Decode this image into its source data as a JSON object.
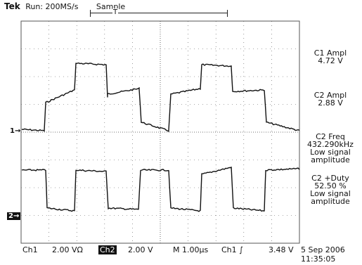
{
  "header": {
    "brand": "Tek",
    "run_state": "Run: 200MS/s",
    "acq_mode": "Sample",
    "trigger_pos_glyph": "T"
  },
  "markers": {
    "ch1": "1→",
    "ch2": "2→"
  },
  "measurements": [
    {
      "title": "C1 Ampl",
      "lines": [
        "4.72 V"
      ]
    },
    {
      "title": "C2 Ampl",
      "lines": [
        "2.88 V"
      ]
    },
    {
      "title": "C2 Freq",
      "lines": [
        "432.290kHz",
        "Low signal",
        "amplitude"
      ]
    },
    {
      "title": "C2 +Duty",
      "lines": [
        "52.50 %",
        "Low signal",
        "amplitude"
      ]
    }
  ],
  "bottom": {
    "ch1_label": "Ch1",
    "ch1_scale": "2.00 VΩ",
    "ch2_label": "Ch2",
    "ch2_scale": "2.00 V",
    "timebase": "M 1.00µs",
    "trigger": "Ch1 ∫",
    "trigger_level": "3.48 V",
    "date": "5 Sep 2006",
    "time": "11:35:05"
  },
  "colors": {
    "trace": "#111111",
    "grid": "#555555",
    "background": "#ffffff"
  }
}
